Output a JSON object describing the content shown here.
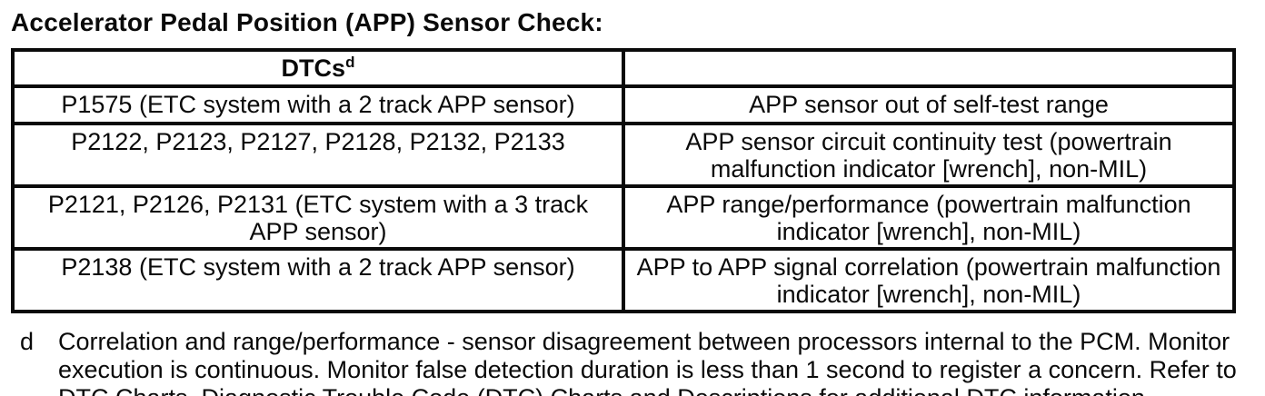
{
  "page": {
    "title": "Accelerator Pedal Position (APP) Sensor Check:"
  },
  "table": {
    "header": {
      "dtcs_label": "DTCs",
      "dtcs_footnote_marker": "d",
      "description_label": ""
    },
    "rows": [
      {
        "dtc": "P1575 (ETC system with a 2 track APP sensor)",
        "description": "APP sensor out of self-test range"
      },
      {
        "dtc": "P2122, P2123, P2127, P2128, P2132, P2133",
        "description": "APP sensor circuit continuity test (powertrain malfunction indicator [wrench], non-MIL)"
      },
      {
        "dtc": "P2121, P2126, P2131 (ETC system with a 3 track APP sensor)",
        "description": "APP range/performance (powertrain malfunction indicator [wrench], non-MIL)"
      },
      {
        "dtc": "P2138 (ETC system with a 2 track APP sensor)",
        "description": "APP to APP signal correlation (powertrain malfunction indicator [wrench], non-MIL)"
      }
    ]
  },
  "footnote": {
    "marker": "d",
    "text": "Correlation and range/performance - sensor disagreement between processors internal to the PCM. Monitor execution is continuous. Monitor false detection duration is less than 1 second to register a concern. Refer to DTC Charts, Diagnostic Trouble Code (DTC) Charts and Descriptions for additional DTC information."
  },
  "colors": {
    "text": "#0a0a0a",
    "background": "#ffffff",
    "border": "#0a0a0a"
  }
}
